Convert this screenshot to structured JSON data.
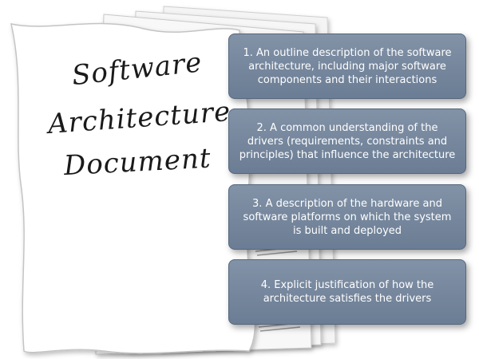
{
  "document_title": {
    "line1": "Software",
    "line2": "Architecture",
    "line3": "Document"
  },
  "boxes": [
    "1. An outline description of the software architecture, including major software components and their interactions",
    "2. A common understanding of the drivers (requirements, constraints and principles) that influence the architecture",
    "3. A description of the hardware and software platforms on which the system is built and deployed",
    "4. Explicit justification of how the architecture satisfies the drivers"
  ],
  "colors": {
    "box_fill": "#7587a0",
    "box_border": "#56677e",
    "box_text": "#ffffff",
    "paper": "#ffffff",
    "paper_edge": "#d0d0d0"
  }
}
